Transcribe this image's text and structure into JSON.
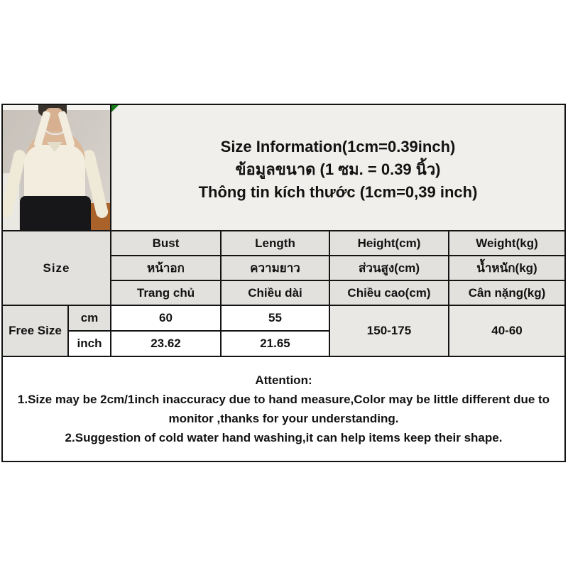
{
  "title_block": {
    "line_en": "Size Information(1cm=0.39inch)",
    "line_th": "ข้อมูลขนาด (1 ซม. = 0.39 นิ้ว)",
    "line_vi": "Thông tin kích thước (1cm=0,39 inch)"
  },
  "size_table": {
    "corner_label": "Size",
    "columns": [
      {
        "en": "Bust",
        "th": "หน้าอก",
        "vi": "Trang chủ"
      },
      {
        "en": "Length",
        "th": "ความยาว",
        "vi": "Chiều dài"
      },
      {
        "en": "Height(cm)",
        "th": "ส่วนสูง(cm)",
        "vi": "Chiều cao(cm)"
      },
      {
        "en": "Weight(kg)",
        "th": "น้ำหนัก(kg)",
        "vi": "Cân nặng(kg)"
      }
    ],
    "row_label": "Free Size",
    "unit_rows": [
      {
        "unit": "cm",
        "bust": "60",
        "length": "55"
      },
      {
        "unit": "inch",
        "bust": "23.62",
        "length": "21.65"
      }
    ],
    "height_range": "150-175",
    "weight_range": "40-60"
  },
  "attention": {
    "lines": [
      "Attention:",
      "1.Size may be 2cm/1inch inaccuracy due to hand measure,Color may be little different due to",
      "monitor ,thanks for your understanding.",
      "2.Suggestion of cold water hand washing,it can help items keep their shape."
    ]
  },
  "colors": {
    "table_border": "#141414",
    "title_cell_bg": "#f1efec",
    "header_cell_bg": "#e3e1de",
    "value_cell_bg": "#ffffff",
    "range_cell_bg": "#eae8e5",
    "corner_flag_green": "#167a16"
  }
}
